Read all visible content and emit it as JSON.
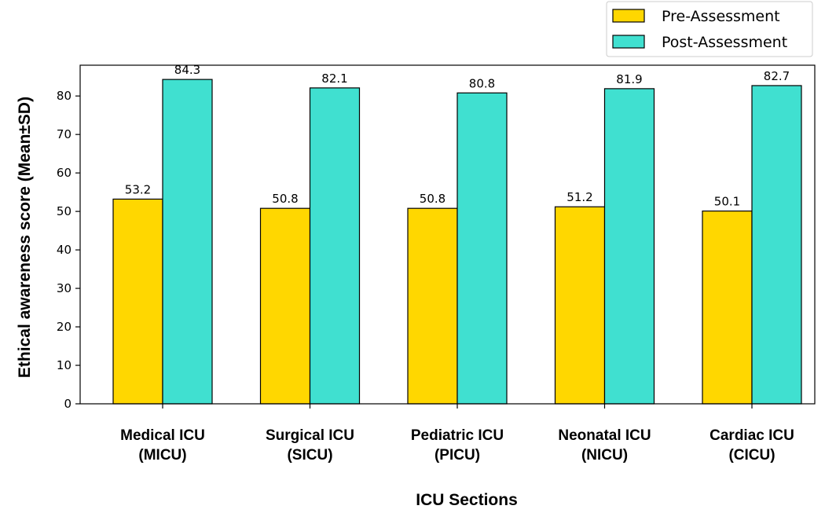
{
  "chart_data": {
    "type": "bar",
    "categories": [
      [
        "Medical ICU",
        "(MICU)"
      ],
      [
        "Surgical ICU",
        "(SICU)"
      ],
      [
        "Pediatric ICU",
        "(PICU)"
      ],
      [
        "Neonatal ICU",
        "(NICU)"
      ],
      [
        "Cardiac ICU",
        "(CICU)"
      ]
    ],
    "series": [
      {
        "name": "Pre-Assessment",
        "values": [
          53.2,
          50.8,
          50.8,
          51.2,
          50.1
        ],
        "labels": [
          "53.2",
          "50.8",
          "50.8",
          "51.2",
          "50.1"
        ],
        "color": "#FFD700"
      },
      {
        "name": "Post-Assessment",
        "values": [
          84.3,
          82.1,
          80.8,
          81.9,
          82.7
        ],
        "labels": [
          "84.3",
          "82.1",
          "80.8",
          "81.9",
          "82.7"
        ],
        "color": "#40E0D0"
      }
    ],
    "xlabel": "ICU Sections",
    "ylabel": "Ethical awareness score (Mean±SD)",
    "ylim": [
      0,
      88
    ],
    "yticks": [
      0,
      10,
      20,
      30,
      40,
      50,
      60,
      70,
      80
    ],
    "yticklabels": [
      "0",
      "10",
      "20",
      "30",
      "40",
      "50",
      "60",
      "70",
      "80"
    ],
    "grid": false,
    "legend": "top-right"
  }
}
